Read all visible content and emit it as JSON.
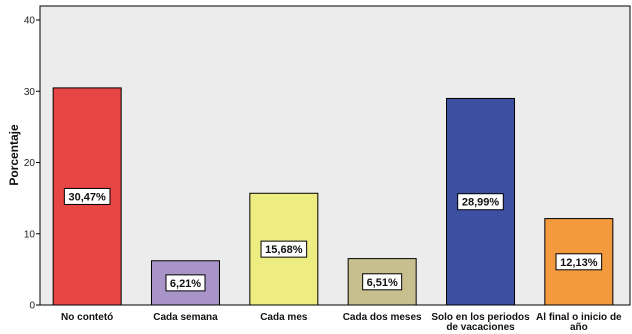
{
  "chart_data": {
    "type": "bar",
    "title": "",
    "xlabel": "",
    "ylabel": "Porcentaje",
    "ylim": [
      0,
      40
    ],
    "yticks": [
      0,
      10,
      20,
      30,
      40
    ],
    "grid": false,
    "legend": "none",
    "categories": [
      [
        "No contetó"
      ],
      [
        "Cada semana"
      ],
      [
        "Cada mes"
      ],
      [
        "Cada dos meses"
      ],
      [
        "Solo en los periodos",
        "de vacaciones"
      ],
      [
        "Al final o inicio de",
        "año"
      ]
    ],
    "values": [
      30.47,
      6.21,
      15.68,
      6.51,
      28.99,
      12.13
    ],
    "data_labels": [
      "30,47%",
      "6,21%",
      "15,68%",
      "6,51%",
      "28,99%",
      "12,13%"
    ],
    "colors": [
      "#e84545",
      "#a994c8",
      "#eded82",
      "#c7c08e",
      "#3c4fa0",
      "#f29a3d"
    ],
    "plot_background": "#ececec"
  }
}
